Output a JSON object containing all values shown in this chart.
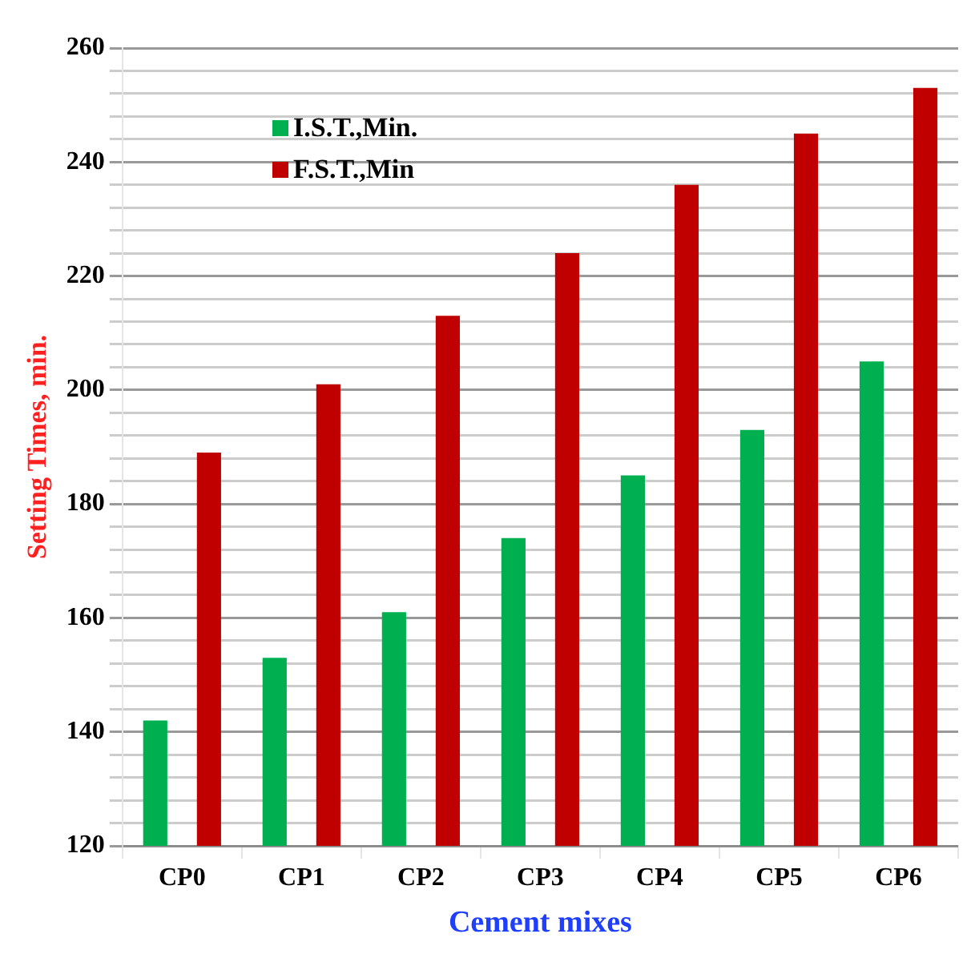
{
  "chart_data": {
    "type": "bar",
    "xlabel": "Cement mixes",
    "ylabel": "Setting Times, min.",
    "categories": [
      "CP0",
      "CP1",
      "CP2",
      "CP3",
      "CP4",
      "CP5",
      "CP6"
    ],
    "series": [
      {
        "name": "I.S.T.,Min.",
        "color": "#00b050",
        "values": [
          142,
          153,
          161,
          174,
          185,
          193,
          205
        ]
      },
      {
        "name": "F.S.T.,Min",
        "color": "#c00000",
        "values": [
          189,
          201,
          213,
          224,
          236,
          245,
          253
        ]
      }
    ],
    "ylim": [
      120,
      260
    ],
    "yticks": [
      120,
      {
        "value": 124,
        "label": null
      },
      {
        "value": 128,
        "label": null
      },
      {
        "value": 132,
        "label": null
      },
      {
        "value": 136,
        "label": null
      },
      140,
      {
        "value": 144,
        "label": null
      },
      {
        "value": 148,
        "label": null
      },
      {
        "value": 152,
        "label": null
      },
      {
        "value": 156,
        "label": null
      },
      160,
      {
        "value": 164,
        "label": null
      },
      {
        "value": 168,
        "label": null
      },
      {
        "value": 172,
        "label": null
      },
      {
        "value": 176,
        "label": null
      },
      180,
      {
        "value": 184,
        "label": null
      },
      {
        "value": 188,
        "label": null
      },
      {
        "value": 192,
        "label": null
      },
      {
        "value": 196,
        "label": null
      },
      200,
      {
        "value": 204,
        "label": null
      },
      {
        "value": 208,
        "label": null
      },
      {
        "value": 212,
        "label": null
      },
      {
        "value": 216,
        "label": null
      },
      220,
      {
        "value": 224,
        "label": null
      },
      {
        "value": 228,
        "label": null
      },
      {
        "value": 232,
        "label": null
      },
      {
        "value": 236,
        "label": null
      },
      240,
      {
        "value": 244,
        "label": null
      },
      {
        "value": 248,
        "label": null
      },
      {
        "value": 252,
        "label": null
      },
      {
        "value": 256,
        "label": null
      },
      260
    ],
    "grid": true,
    "legend": "top left"
  }
}
